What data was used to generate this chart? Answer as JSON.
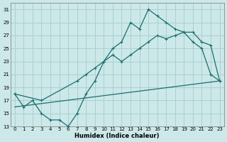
{
  "xlabel": "Humidex (Indice chaleur)",
  "bg_color": "#cce8e8",
  "grid_color": "#aad0d0",
  "line_color": "#1a6e6e",
  "xlim": [
    -0.5,
    23.5
  ],
  "ylim": [
    13,
    32
  ],
  "xticks": [
    0,
    1,
    2,
    3,
    4,
    5,
    6,
    7,
    8,
    9,
    10,
    11,
    12,
    13,
    14,
    15,
    16,
    17,
    18,
    19,
    20,
    21,
    22,
    23
  ],
  "yticks": [
    13,
    15,
    17,
    19,
    21,
    23,
    25,
    27,
    29,
    31
  ],
  "line1_x": [
    0,
    1,
    2,
    3,
    4,
    5,
    6,
    7,
    8,
    9,
    10,
    11,
    12,
    13,
    14,
    15,
    16,
    17,
    18,
    19,
    20,
    21,
    22,
    23
  ],
  "line1_y": [
    18,
    16,
    17,
    15,
    14,
    14,
    13,
    15,
    18,
    20,
    23,
    25,
    26,
    29,
    28,
    31,
    30,
    29,
    28,
    27.5,
    26,
    25,
    21,
    20
  ],
  "line2_x": [
    0,
    3,
    7,
    8,
    9,
    10,
    11,
    12,
    13,
    14,
    15,
    16,
    17,
    18,
    19,
    20,
    21,
    22,
    23
  ],
  "line2_y": [
    18,
    17,
    20,
    21,
    22,
    23,
    24,
    23,
    24,
    25,
    26,
    27,
    26.5,
    27,
    27.5,
    27.5,
    26,
    25.5,
    20
  ],
  "line3_x": [
    0,
    23
  ],
  "line3_y": [
    16,
    20
  ]
}
